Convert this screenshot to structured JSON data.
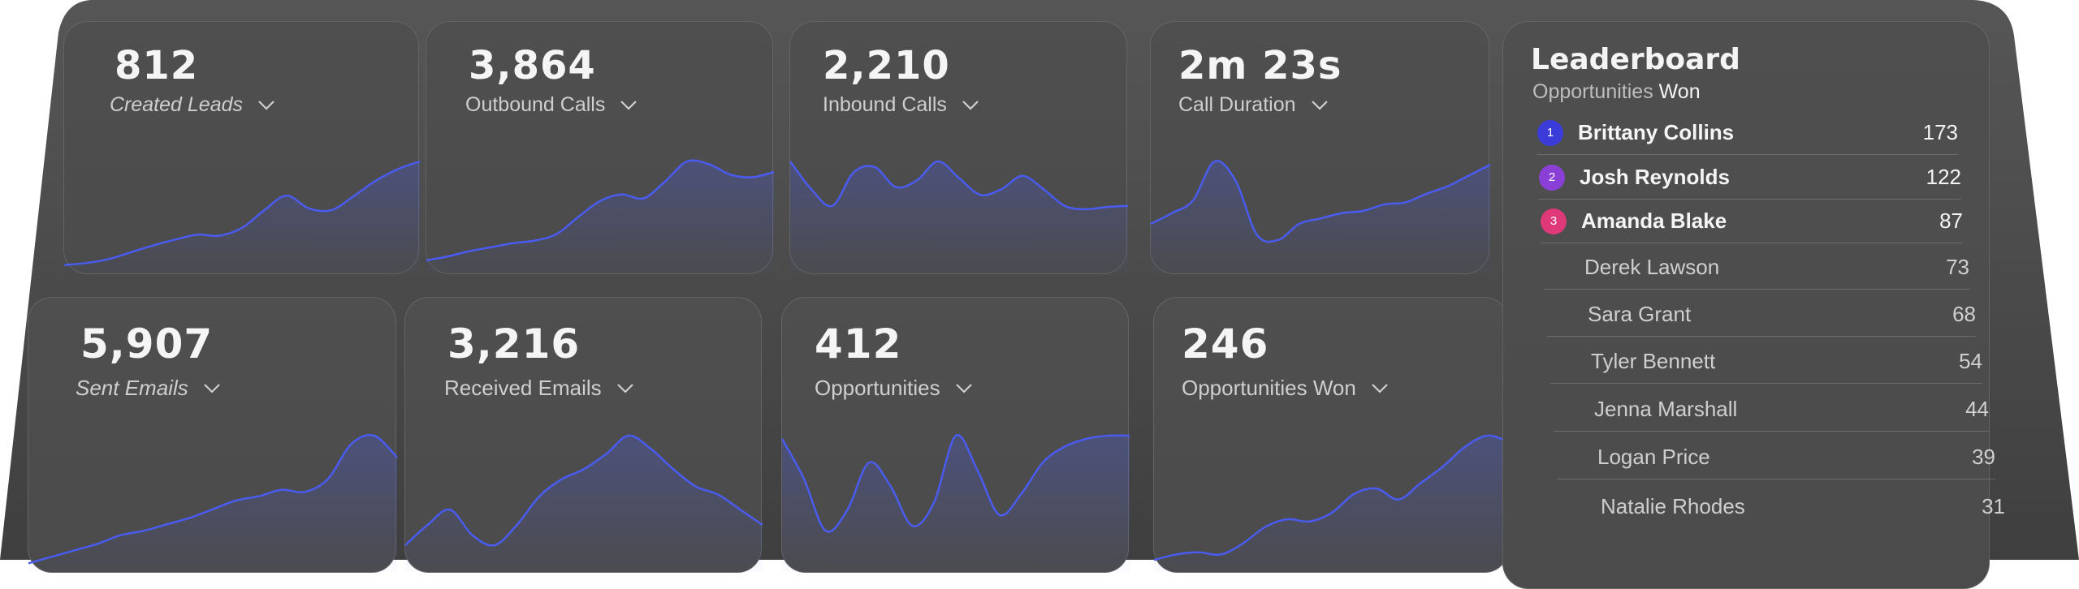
{
  "metrics": [
    {
      "id": "created-leads",
      "value": "812",
      "label": "Created Leads",
      "series": [
        2,
        4,
        8,
        15,
        22,
        28,
        33,
        32,
        40,
        58,
        73,
        60,
        58,
        72,
        88,
        100,
        108
      ]
    },
    {
      "id": "outbound-calls",
      "value": "3,864",
      "label": "Outbound Calls",
      "series": [
        5,
        8,
        12,
        15,
        18,
        20,
        25,
        38,
        50,
        55,
        52,
        65,
        80,
        78,
        70,
        68,
        72
      ]
    },
    {
      "id": "inbound-calls",
      "value": "2,210",
      "label": "Inbound Calls",
      "series": [
        95,
        70,
        55,
        85,
        90,
        72,
        78,
        95,
        80,
        65,
        70,
        82,
        70,
        55,
        52,
        54,
        55
      ]
    },
    {
      "id": "call-duration",
      "value": "2m 23s",
      "label": "Call Duration",
      "series": [
        40,
        50,
        62,
        98,
        80,
        30,
        25,
        40,
        45,
        50,
        52,
        58,
        60,
        68,
        75,
        85,
        95
      ]
    },
    {
      "id": "sent-emails",
      "value": "5,907",
      "label": "Sent Emails",
      "series": [
        2,
        8,
        14,
        20,
        28,
        32,
        38,
        44,
        52,
        60,
        64,
        70,
        68,
        80,
        112,
        120,
        100
      ]
    },
    {
      "id": "received-emails",
      "value": "3,216",
      "label": "Received Emails",
      "series": [
        20,
        40,
        55,
        30,
        20,
        40,
        68,
        85,
        95,
        110,
        128,
        115,
        95,
        78,
        70,
        55,
        40
      ]
    },
    {
      "id": "opportunities",
      "value": "412",
      "label": "Opportunities",
      "series": [
        80,
        55,
        22,
        35,
        65,
        50,
        25,
        40,
        82,
        60,
        32,
        45,
        65,
        75,
        80,
        82,
        82
      ]
    },
    {
      "id": "opportunities-won",
      "value": "246",
      "label": "Opportunities Won",
      "series": [
        5,
        10,
        12,
        10,
        20,
        35,
        42,
        40,
        48,
        65,
        70,
        60,
        75,
        90,
        108,
        118,
        112
      ]
    }
  ],
  "leaderboard": {
    "title": "Leaderboard",
    "subtitle_prefix": "Opportunities",
    "subtitle_strong": "Won",
    "rows": [
      {
        "rank": "1",
        "name": "Brittany Collins",
        "score": "173",
        "color": "#3b3bd9"
      },
      {
        "rank": "2",
        "name": "Josh Reynolds",
        "score": "122",
        "color": "#8a3fd6"
      },
      {
        "rank": "3",
        "name": "Amanda Blake",
        "score": "87",
        "color": "#e0397a"
      },
      {
        "rank": "",
        "name": "Derek Lawson",
        "score": "73",
        "color": ""
      },
      {
        "rank": "",
        "name": "Sara Grant",
        "score": "68",
        "color": ""
      },
      {
        "rank": "",
        "name": "Tyler Bennett",
        "score": "54",
        "color": ""
      },
      {
        "rank": "",
        "name": "Jenna Marshall",
        "score": "44",
        "color": ""
      },
      {
        "rank": "",
        "name": "Logan Price",
        "score": "39",
        "color": ""
      },
      {
        "rank": "",
        "name": "Natalie Rhodes",
        "score": "31",
        "color": ""
      }
    ]
  },
  "colors": {
    "line": "#4a5cf0",
    "panel": "#474747",
    "card": "#4e4e4e"
  }
}
